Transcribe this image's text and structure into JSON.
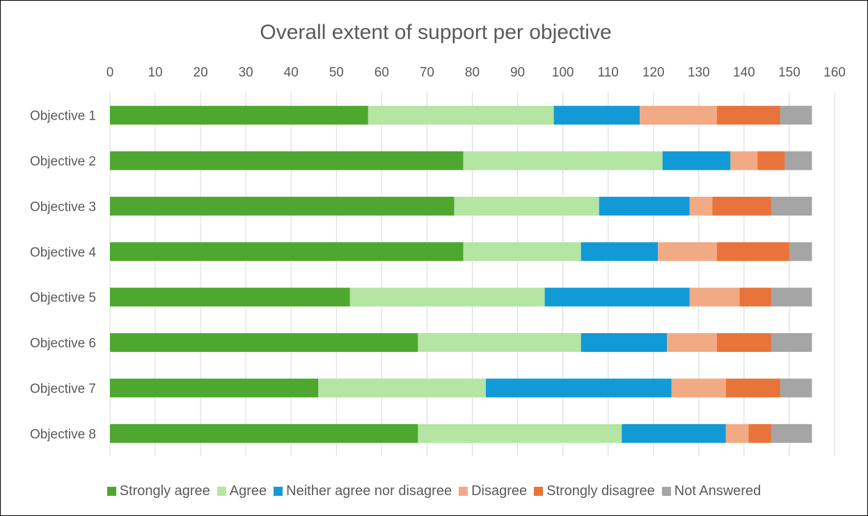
{
  "chart_data": {
    "type": "bar",
    "orientation": "horizontal",
    "stacked": true,
    "title": "Overall extent of support per objective",
    "xlabel": "",
    "ylabel": "",
    "xlim": [
      0,
      160
    ],
    "x_ticks": [
      0,
      10,
      20,
      30,
      40,
      50,
      60,
      70,
      80,
      90,
      100,
      110,
      120,
      130,
      140,
      150,
      160
    ],
    "x_axis_position": "top",
    "grid": true,
    "legend_position": "bottom",
    "categories": [
      "Objective 1",
      "Objective 2",
      "Objective 3",
      "Objective 4",
      "Objective 5",
      "Objective 6",
      "Objective 7",
      "Objective 8"
    ],
    "series": [
      {
        "name": "Strongly agree",
        "color": "#4ea72e",
        "values": [
          57,
          78,
          76,
          78,
          53,
          68,
          46,
          68
        ]
      },
      {
        "name": "Agree",
        "color": "#b4e5a2",
        "values": [
          41,
          44,
          32,
          26,
          43,
          36,
          37,
          45
        ]
      },
      {
        "name": "Neither agree nor disagree",
        "color": "#129ad7",
        "values": [
          19,
          15,
          20,
          17,
          32,
          19,
          41,
          23
        ]
      },
      {
        "name": "Disagree",
        "color": "#f2aa84",
        "values": [
          17,
          6,
          5,
          13,
          11,
          11,
          12,
          5
        ]
      },
      {
        "name": "Strongly disagree",
        "color": "#e8743b",
        "values": [
          14,
          6,
          13,
          16,
          7,
          12,
          12,
          5
        ]
      },
      {
        "name": "Not Answered",
        "color": "#a5a5a5",
        "values": [
          7,
          6,
          9,
          5,
          9,
          9,
          7,
          9
        ]
      }
    ]
  }
}
